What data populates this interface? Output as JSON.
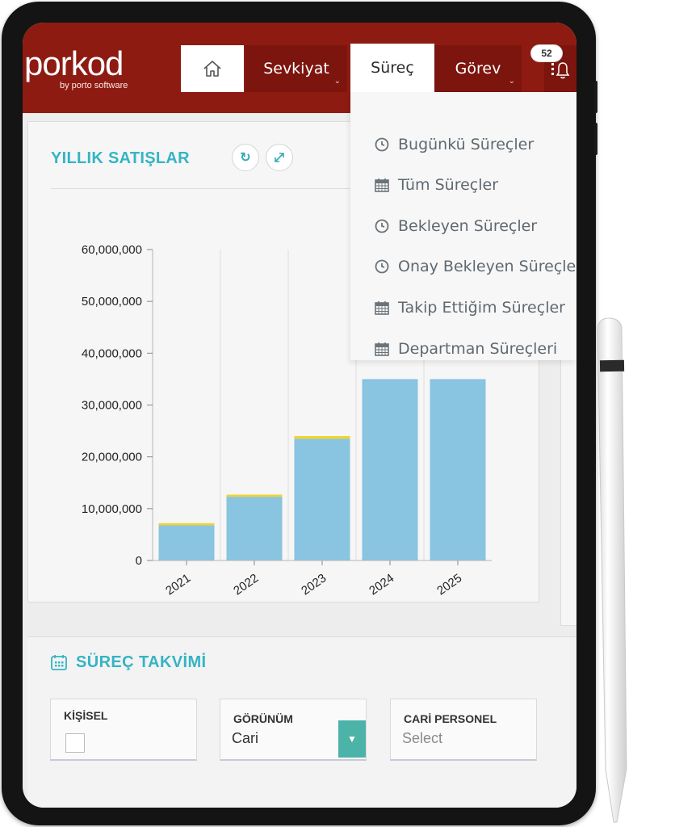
{
  "brand": {
    "logo": "porkod",
    "tagline": "by porto software"
  },
  "nav": {
    "items": [
      {
        "label": "Sevkiyat"
      },
      {
        "label": "Süreç"
      },
      {
        "label": "Görev"
      }
    ],
    "notifications_count": "52"
  },
  "dropdown": {
    "items": [
      {
        "label": "Bugünkü Süreçler",
        "icon": "clock-icon"
      },
      {
        "label": "Tüm Süreçler",
        "icon": "calendar-icon"
      },
      {
        "label": "Bekleyen Süreçler",
        "icon": "clock-icon"
      },
      {
        "label": "Onay Bekleyen Süreçler",
        "icon": "clock-icon"
      },
      {
        "label": "Takip Ettiğim Süreçler",
        "icon": "calendar-icon"
      },
      {
        "label": "Departman Süreçleri",
        "icon": "calendar-icon"
      }
    ]
  },
  "sales_card": {
    "title": "YILLIK SATIŞLAR"
  },
  "chart_data": {
    "type": "bar",
    "categories": [
      "2021",
      "2022",
      "2023",
      "2024",
      "2025"
    ],
    "series": [
      {
        "values": [
          6800000,
          12300000,
          23500000,
          35000000,
          35000000
        ],
        "color": "#89c4e1"
      },
      {
        "values": [
          400000,
          400000,
          500000,
          0,
          0
        ],
        "color": "#f2d22e"
      }
    ],
    "ylim": [
      0,
      60000000
    ],
    "yticks": [
      "60,000,000",
      "50,000,000",
      "40,000,000",
      "30,000,000",
      "20,000,000",
      "10,000,000",
      "0"
    ],
    "ytick_values": [
      60000000,
      50000000,
      40000000,
      30000000,
      20000000,
      10000000,
      0
    ],
    "grid": "vertical"
  },
  "calendar": {
    "title": "SÜREÇ TAKVİMİ",
    "fields": {
      "personal_label": "KİŞİSEL",
      "view_label": "GÖRÜNÜM",
      "view_value": "Cari",
      "staff_label": "CARİ PERSONEL",
      "staff_placeholder": "Select"
    }
  },
  "colors": {
    "brand_red": "#8e1b12",
    "accent_teal": "#35b4c4",
    "select_teal": "#4bb3a8"
  }
}
